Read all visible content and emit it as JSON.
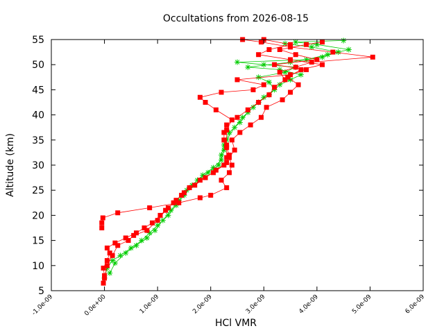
{
  "chart_data": {
    "type": "line",
    "title": "Occultations from 2026-08-15",
    "xlabel": "HCl VMR",
    "ylabel": "Altitude (km)",
    "xlim": [
      -1e-09,
      6e-09
    ],
    "ylim": [
      5,
      55
    ],
    "x_ticks": [
      -1e-09,
      0,
      1e-09,
      2e-09,
      3e-09,
      4e-09,
      5e-09,
      6e-09
    ],
    "x_tick_labels": [
      "-1.0e-09",
      "0.0e+00",
      "1.0e-09",
      "2.0e-09",
      "3.0e-09",
      "4.0e-09",
      "5.0e-09",
      "6.0e-09"
    ],
    "y_ticks": [
      5,
      10,
      15,
      20,
      25,
      30,
      35,
      40,
      45,
      50,
      55
    ],
    "y_tick_labels": [
      "5",
      "10",
      "15",
      "20",
      "25",
      "30",
      "35",
      "40",
      "45",
      "50",
      "55"
    ],
    "grid": false,
    "legend": "none",
    "series": [
      {
        "color": "#00cc00",
        "marker": "plus",
        "points": [
          [
            0.0,
            7.5
          ],
          [
            5e-11,
            9.5
          ],
          [
            1.5e-10,
            11.0
          ],
          [
            3e-10,
            12.0
          ],
          [
            5e-10,
            13.5
          ],
          [
            7e-10,
            15.0
          ],
          [
            8.5e-10,
            16.5
          ],
          [
            1e-09,
            18.0
          ],
          [
            1.2e-09,
            20.0
          ],
          [
            1.35e-09,
            22.0
          ],
          [
            1.5e-09,
            24.0
          ],
          [
            1.65e-09,
            26.0
          ],
          [
            1.85e-09,
            28.0
          ],
          [
            2.05e-09,
            29.5
          ],
          [
            2.2e-09,
            31.0
          ],
          [
            2.25e-09,
            33.0
          ],
          [
            2.3e-09,
            35.0
          ],
          [
            2.45e-09,
            37.5
          ],
          [
            2.6e-09,
            39.5
          ],
          [
            2.8e-09,
            41.5
          ],
          [
            3e-09,
            43.5
          ],
          [
            3.2e-09,
            45.0
          ],
          [
            3.1e-09,
            46.5
          ],
          [
            2.9e-09,
            47.5
          ],
          [
            3.4e-09,
            48.5
          ],
          [
            3.6e-09,
            49.5
          ],
          [
            3e-09,
            50.0
          ],
          [
            2.5e-09,
            50.5
          ],
          [
            3.8e-09,
            51.0
          ],
          [
            4.2e-09,
            52.0
          ],
          [
            4.6e-09,
            53.0
          ],
          [
            4e-09,
            54.0
          ],
          [
            3.6e-09,
            54.5
          ],
          [
            4.5e-09,
            54.8
          ]
        ]
      },
      {
        "color": "#00cc00",
        "marker": "plus",
        "points": [
          [
            1e-10,
            8.5
          ],
          [
            2e-10,
            10.5
          ],
          [
            4e-10,
            12.5
          ],
          [
            6e-10,
            14.0
          ],
          [
            8e-10,
            15.5
          ],
          [
            9.5e-10,
            17.0
          ],
          [
            1.1e-09,
            19.0
          ],
          [
            1.25e-09,
            21.0
          ],
          [
            1.4e-09,
            23.0
          ],
          [
            1.55e-09,
            25.0
          ],
          [
            1.75e-09,
            27.0
          ],
          [
            1.95e-09,
            28.5
          ],
          [
            2.15e-09,
            30.0
          ],
          [
            2.2e-09,
            32.0
          ],
          [
            2.25e-09,
            34.0
          ],
          [
            2.35e-09,
            36.5
          ],
          [
            2.55e-09,
            38.5
          ],
          [
            2.7e-09,
            40.5
          ],
          [
            2.9e-09,
            42.5
          ],
          [
            3.1e-09,
            44.0
          ],
          [
            3.3e-09,
            46.0
          ],
          [
            3.5e-09,
            47.0
          ],
          [
            3.7e-09,
            48.0
          ],
          [
            3.3e-09,
            49.0
          ],
          [
            2.7e-09,
            49.5
          ],
          [
            3.5e-09,
            50.5
          ],
          [
            4.1e-09,
            51.5
          ],
          [
            4.4e-09,
            52.5
          ],
          [
            3.9e-09,
            53.5
          ],
          [
            3.4e-09,
            54.2
          ]
        ]
      },
      {
        "color": "#ff0000",
        "marker": "square",
        "points": [
          [
            -2e-11,
            6.5
          ],
          [
            0.0,
            8.0
          ],
          [
            -2e-11,
            9.5
          ],
          [
            5e-11,
            11.0
          ],
          [
            1e-10,
            12.5
          ],
          [
            5e-11,
            13.5
          ],
          [
            2e-10,
            14.5
          ],
          [
            4e-10,
            15.5
          ],
          [
            6e-10,
            16.5
          ],
          [
            7.5e-10,
            17.5
          ],
          [
            9e-10,
            18.5
          ],
          [
            1.05e-09,
            20.0
          ],
          [
            1.2e-09,
            21.5
          ],
          [
            1.35e-09,
            23.0
          ],
          [
            1.5e-09,
            24.5
          ],
          [
            1.7e-09,
            26.0
          ],
          [
            1.9e-09,
            27.5
          ],
          [
            2.1e-09,
            29.0
          ],
          [
            2.3e-09,
            30.5
          ],
          [
            2.35e-09,
            32.0
          ],
          [
            2.3e-09,
            33.5
          ],
          [
            2.25e-09,
            35.0
          ],
          [
            2.25e-09,
            36.5
          ],
          [
            2.3e-09,
            38.0
          ],
          [
            2.5e-09,
            39.5
          ],
          [
            2.7e-09,
            41.0
          ],
          [
            2.9e-09,
            42.5
          ],
          [
            3.1e-09,
            44.0
          ],
          [
            3.2e-09,
            45.5
          ],
          [
            3.4e-09,
            47.0
          ],
          [
            3.3e-09,
            48.5
          ],
          [
            3.6e-09,
            49.5
          ],
          [
            3.9e-09,
            50.5
          ],
          [
            5.05e-09,
            51.5
          ],
          [
            4.3e-09,
            52.5
          ],
          [
            3.5e-09,
            53.5
          ],
          [
            2.95e-09,
            54.5
          ],
          [
            2.6e-09,
            55.0
          ]
        ]
      },
      {
        "color": "#ff0000",
        "marker": "square",
        "points": [
          [
            0.0,
            7.5
          ],
          [
            5e-11,
            10.0
          ],
          [
            1.5e-10,
            12.0
          ],
          [
            2.5e-10,
            14.0
          ],
          [
            4.5e-10,
            15.0
          ],
          [
            5.5e-10,
            16.0
          ],
          [
            8e-10,
            17.0
          ],
          [
            1e-09,
            19.0
          ],
          [
            1.15e-09,
            21.0
          ],
          [
            1.3e-09,
            22.5
          ],
          [
            1.45e-09,
            24.0
          ],
          [
            1.6e-09,
            25.5
          ],
          [
            1.8e-09,
            27.0
          ],
          [
            2.05e-09,
            28.5
          ],
          [
            2.25e-09,
            30.0
          ],
          [
            2.3e-09,
            31.5
          ],
          [
            2.3e-09,
            34.0
          ],
          [
            2.3e-09,
            37.0
          ],
          [
            2.4e-09,
            39.0
          ],
          [
            2.1e-09,
            41.0
          ],
          [
            1.9e-09,
            42.5
          ],
          [
            1.8e-09,
            43.5
          ],
          [
            2.2e-09,
            44.5
          ],
          [
            2.8e-09,
            45.0
          ],
          [
            3e-09,
            46.0
          ],
          [
            2.5e-09,
            47.0
          ],
          [
            3.5e-09,
            48.0
          ],
          [
            3.8e-09,
            49.0
          ],
          [
            3.2e-09,
            50.0
          ],
          [
            4e-09,
            51.0
          ],
          [
            3.6e-09,
            52.0
          ],
          [
            3.3e-09,
            53.0
          ],
          [
            3.8e-09,
            54.0
          ],
          [
            4.1e-09,
            54.5
          ]
        ]
      },
      {
        "color": "#ff0000",
        "marker": "square",
        "points": [
          [
            -5e-11,
            17.5
          ],
          [
            -5e-11,
            18.5
          ],
          [
            -3e-11,
            19.5
          ],
          [
            2.5e-10,
            20.5
          ],
          [
            8.5e-10,
            21.5
          ],
          [
            1.4e-09,
            22.5
          ],
          [
            1.8e-09,
            23.5
          ],
          [
            2e-09,
            24.0
          ],
          [
            2.3e-09,
            25.5
          ],
          [
            2.2e-09,
            27.0
          ],
          [
            2.35e-09,
            28.5
          ],
          [
            2.4e-09,
            30.0
          ],
          [
            2.35e-09,
            31.5
          ],
          [
            2.45e-09,
            33.0
          ],
          [
            2.4e-09,
            35.0
          ],
          [
            2.55e-09,
            36.5
          ],
          [
            2.75e-09,
            38.0
          ],
          [
            2.95e-09,
            39.5
          ],
          [
            3.05e-09,
            41.5
          ],
          [
            3.35e-09,
            43.0
          ],
          [
            3.5e-09,
            44.5
          ],
          [
            3.65e-09,
            46.0
          ],
          [
            3.45e-09,
            47.5
          ],
          [
            3.7e-09,
            49.0
          ],
          [
            4.1e-09,
            50.0
          ],
          [
            3.5e-09,
            51.0
          ],
          [
            2.9e-09,
            52.0
          ],
          [
            3.1e-09,
            53.0
          ],
          [
            3.5e-09,
            54.0
          ],
          [
            3e-09,
            55.0
          ]
        ]
      }
    ]
  }
}
